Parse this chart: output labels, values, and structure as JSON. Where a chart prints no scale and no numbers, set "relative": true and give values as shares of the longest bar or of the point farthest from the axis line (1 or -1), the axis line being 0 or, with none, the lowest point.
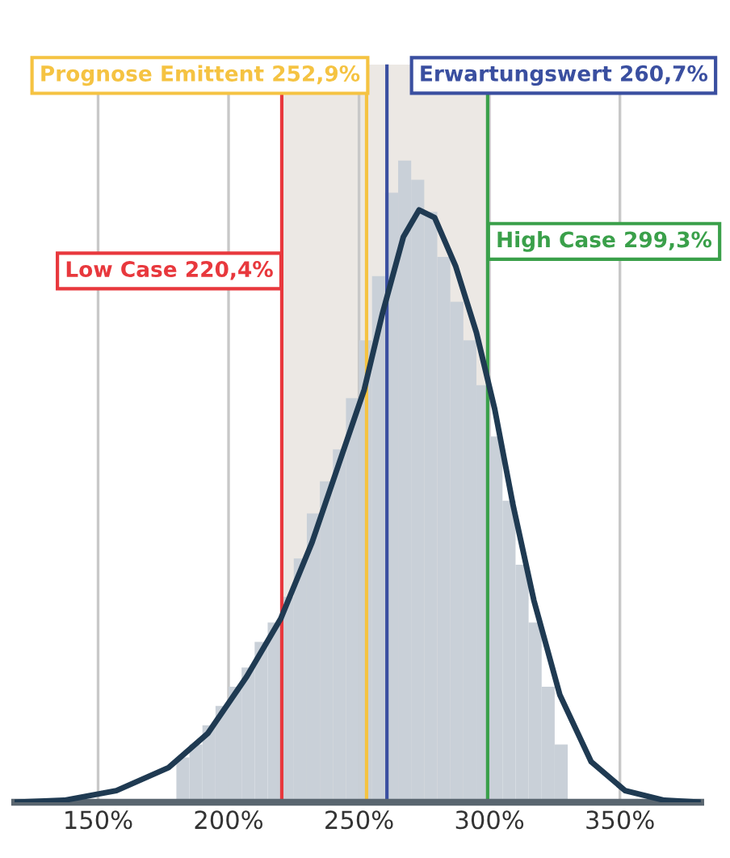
{
  "chart_data": {
    "type": "histogram",
    "relative": true,
    "xlim": [
      118,
      381
    ],
    "xticks": [
      {
        "value": 150,
        "label": "150%"
      },
      {
        "value": 200,
        "label": "200%"
      },
      {
        "value": 250,
        "label": "250%"
      },
      {
        "value": 300,
        "label": "300%"
      },
      {
        "value": 350,
        "label": "350%"
      }
    ],
    "grid": "x",
    "legend": false,
    "series": [
      {
        "color": "#c9d0d8",
        "bins": [
          180,
          185,
          190,
          195,
          200,
          205,
          210,
          215,
          220,
          225,
          230,
          235,
          240,
          245,
          250,
          255,
          260,
          265,
          270,
          275,
          280,
          285,
          290,
          295,
          300,
          305,
          310,
          315,
          320,
          325,
          330
        ],
        "values": [
          0.07,
          0.09,
          0.12,
          0.15,
          0.18,
          0.21,
          0.25,
          0.28,
          0.32,
          0.38,
          0.45,
          0.5,
          0.55,
          0.63,
          0.72,
          0.82,
          0.95,
          1.0,
          0.97,
          0.92,
          0.85,
          0.78,
          0.72,
          0.65,
          0.57,
          0.47,
          0.37,
          0.28,
          0.18,
          0.09
        ]
      },
      {
        "type": "line",
        "color": "#1f3a52",
        "x": [
          118,
          137,
          157,
          177,
          192,
          207,
          220,
          232,
          242,
          252,
          259,
          267,
          273,
          279,
          287,
          295,
          302,
          309,
          317,
          327,
          339,
          352,
          367,
          381
        ],
        "values": [
          0,
          0.003,
          0.018,
          0.054,
          0.107,
          0.196,
          0.286,
          0.405,
          0.524,
          0.643,
          0.762,
          0.881,
          0.923,
          0.911,
          0.836,
          0.732,
          0.613,
          0.464,
          0.315,
          0.167,
          0.063,
          0.018,
          0.003,
          0
        ]
      }
    ],
    "bands": [
      {
        "axis": "x",
        "from": 220.4,
        "to": 299.3,
        "color": "#ece8e4"
      }
    ],
    "ref_lines": [
      {
        "axis": "x",
        "value": 252.9,
        "label": "Prognose Emittent 252,9%",
        "color": "#f5c342"
      },
      {
        "axis": "x",
        "value": 260.7,
        "label": "Erwartungswert 260,7%",
        "color": "#3a4fa0"
      },
      {
        "axis": "x",
        "value": 220.4,
        "label": "Low Case 220,4%",
        "color": "#e8383d"
      },
      {
        "axis": "x",
        "value": 299.3,
        "label": "High Case 299,3%",
        "color": "#3aa04a"
      }
    ]
  }
}
